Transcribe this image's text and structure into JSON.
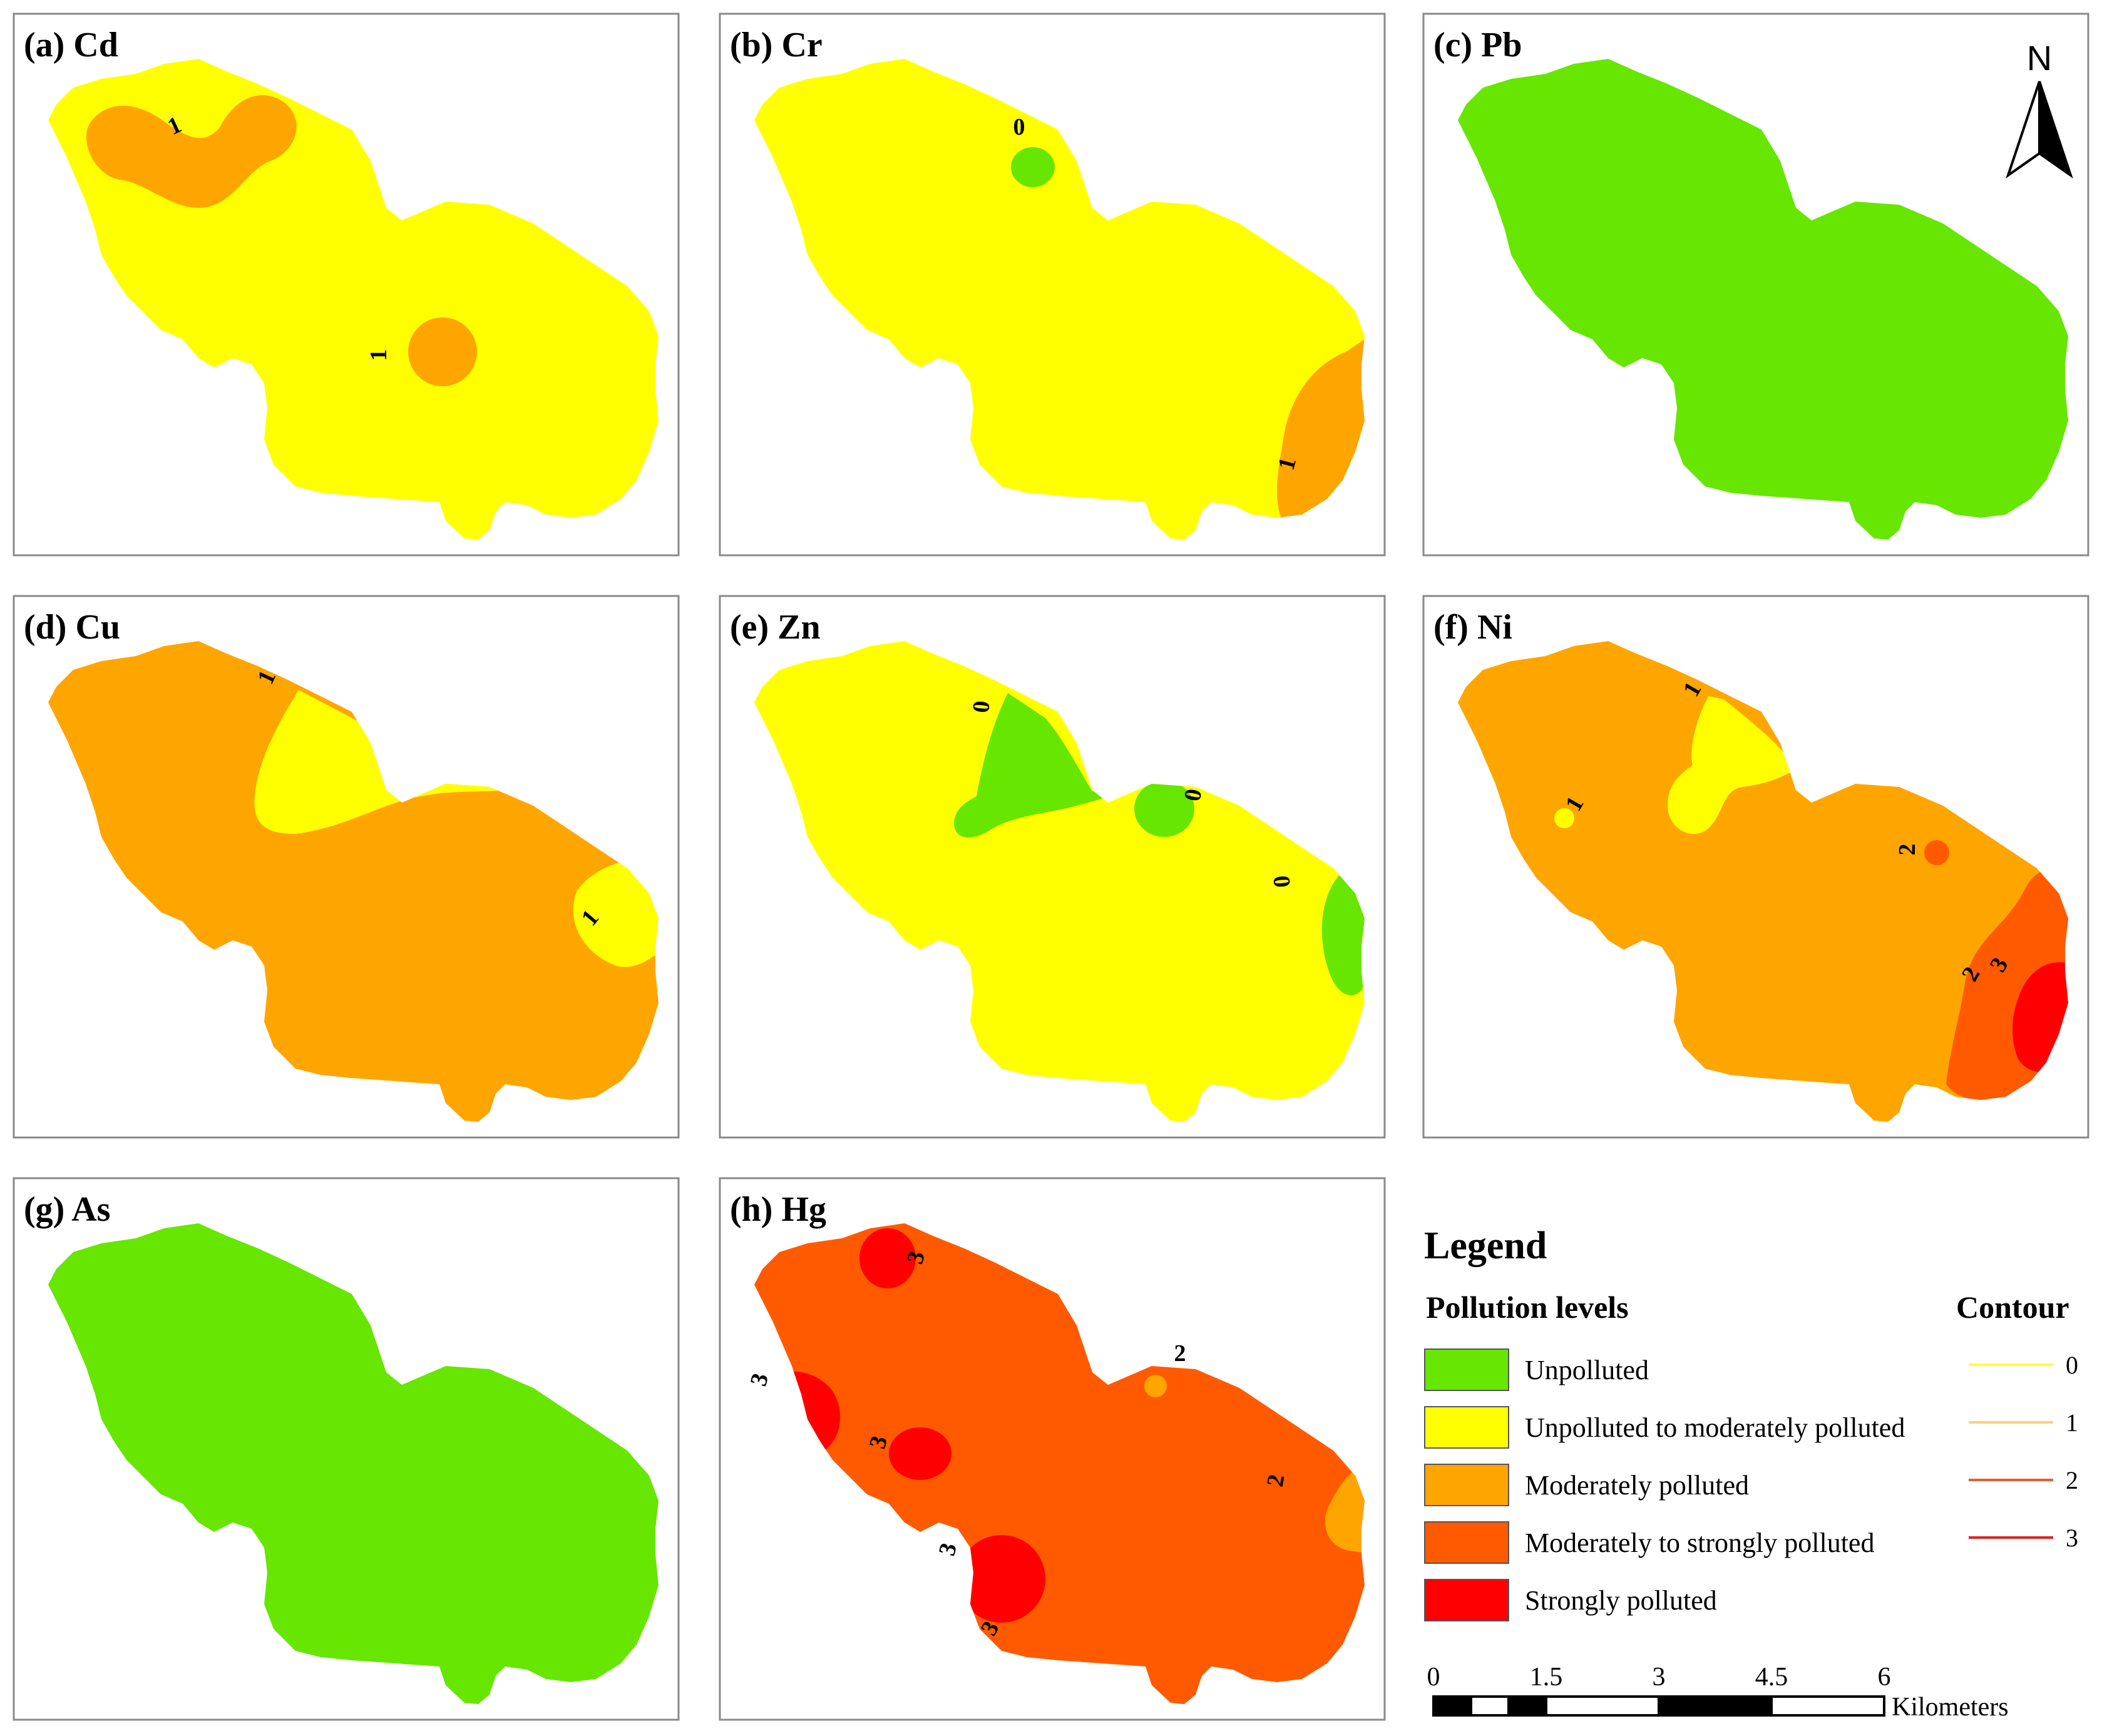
{
  "colors": {
    "unpolluted": "#66e600",
    "unpolluted_to_moderately": "#ffff00",
    "moderately": "#ffa500",
    "moderately_to_strongly": "#ff5a00",
    "strongly": "#ff0000"
  },
  "panels": [
    {
      "id": "a",
      "label": "(a) Cd",
      "base": "unpolluted_to_moderately"
    },
    {
      "id": "b",
      "label": "(b) Cr",
      "base": "unpolluted_to_moderately"
    },
    {
      "id": "c",
      "label": "(c) Pb",
      "base": "unpolluted"
    },
    {
      "id": "d",
      "label": "(d) Cu",
      "base": "moderately"
    },
    {
      "id": "e",
      "label": "(e) Zn",
      "base": "unpolluted_to_moderately"
    },
    {
      "id": "f",
      "label": "(f) Ni",
      "base": "moderately"
    },
    {
      "id": "g",
      "label": "(g) As",
      "base": "unpolluted"
    },
    {
      "id": "h",
      "label": "(h) Hg",
      "base": "moderately_to_strongly"
    }
  ],
  "north_arrow": {
    "label": "N",
    "icon": "north-arrow-icon"
  },
  "legend": {
    "title": "Legend",
    "pollution_heading": "Pollution levels",
    "contour_heading": "Contour",
    "items": [
      {
        "label": "Unpolluted",
        "color": "#66e600"
      },
      {
        "label": "Unpolluted to moderately polluted",
        "color": "#ffff00"
      },
      {
        "label": "Moderately polluted",
        "color": "#ffa500"
      },
      {
        "label": "Moderately to strongly polluted",
        "color": "#ff5a00"
      },
      {
        "label": "Strongly polluted",
        "color": "#ff0000"
      }
    ],
    "contours": [
      {
        "value": "0",
        "color": "#ffff33"
      },
      {
        "value": "1",
        "color": "#ffd080"
      },
      {
        "value": "2",
        "color": "#e06030"
      },
      {
        "value": "3",
        "color": "#e02020"
      }
    ]
  },
  "scale_bar": {
    "ticks": [
      "0",
      "1.5",
      "3",
      "4.5",
      "6"
    ],
    "unit": "Kilometers"
  }
}
